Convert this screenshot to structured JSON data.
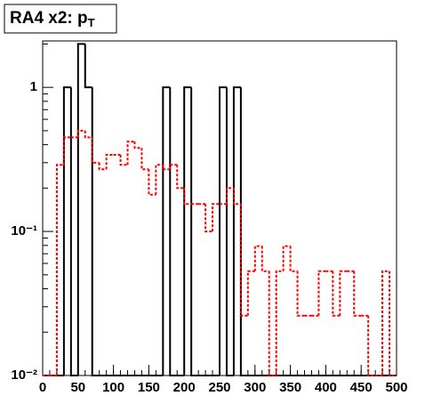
{
  "chart_data": {
    "type": "histogram",
    "title": [
      "RA4 x2: p",
      "T"
    ],
    "bins": [
      0,
      10,
      20,
      30,
      40,
      50,
      60,
      70,
      80,
      90,
      100,
      110,
      120,
      130,
      140,
      150,
      160,
      170,
      180,
      190,
      200,
      210,
      220,
      230,
      240,
      250,
      260,
      270,
      280,
      290,
      300,
      310,
      320,
      330,
      340,
      350,
      360,
      370,
      380,
      390,
      400,
      410,
      420,
      430,
      440,
      450,
      460,
      470,
      480,
      490,
      500
    ],
    "series": [
      {
        "color": "#000000",
        "values": [
          0,
          0,
          0,
          1,
          0,
          2,
          1,
          0,
          0,
          0,
          0,
          0,
          0,
          0,
          0,
          0,
          0,
          1,
          0,
          0,
          1,
          0,
          0,
          0,
          0,
          1,
          0,
          1,
          0,
          0,
          0,
          0,
          0,
          0,
          0,
          0,
          0,
          0,
          0,
          0,
          0,
          0,
          0,
          0,
          0,
          0,
          0,
          0,
          0,
          0
        ]
      },
      {
        "color": "#ff0000",
        "values": [
          0,
          0,
          0.29,
          0.45,
          0.45,
          0.5,
          0.45,
          0.3,
          0.27,
          0.34,
          0.34,
          0.29,
          0.42,
          0.38,
          0.27,
          0.18,
          0.29,
          0.27,
          0.29,
          0.2,
          0.155,
          0.155,
          0.155,
          0.1,
          0.155,
          0.155,
          0.2,
          0.155,
          0.026,
          0.053,
          0.079,
          0.053,
          0,
          0.053,
          0.079,
          0.053,
          0.026,
          0.026,
          0.026,
          0.053,
          0.053,
          0.026,
          0.053,
          0.053,
          0.026,
          0.026,
          0,
          0,
          0.053,
          0
        ]
      }
    ],
    "xlim": [
      0,
      500
    ],
    "xticks": [
      0,
      50,
      100,
      150,
      200,
      250,
      300,
      350,
      400,
      450,
      500
    ],
    "ylim": [
      0.01,
      2.1
    ],
    "yticks": [
      {
        "value": 0.01,
        "label": "10⁻²"
      },
      {
        "value": 0.1,
        "label": "10⁻¹"
      },
      1
    ],
    "log_y": true
  }
}
